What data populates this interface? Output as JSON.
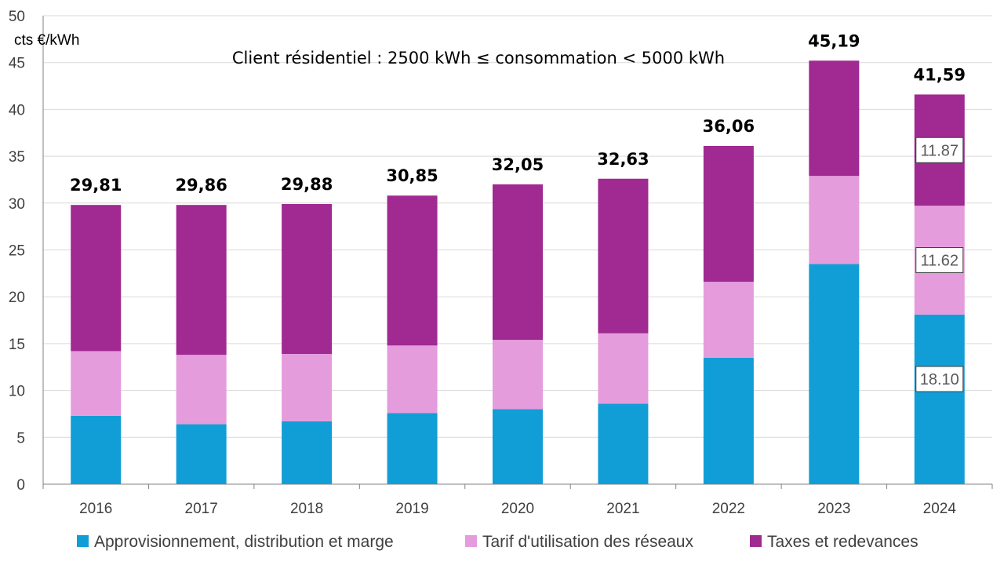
{
  "chart_data": {
    "type": "bar",
    "stacked": true,
    "title": "Client résidentiel : 2500 kWh ≤ consommation < 5000 kWh",
    "ylabel": "cts €/kWh",
    "xlabel": "",
    "ylim": [
      0,
      50
    ],
    "yticks": [
      "0",
      "5",
      "10",
      "15",
      "20",
      "25",
      "30",
      "35",
      "40",
      "45",
      "50"
    ],
    "grid": true,
    "legend_position": "bottom",
    "categories": [
      "2016",
      "2017",
      "2018",
      "2019",
      "2020",
      "2021",
      "2022",
      "2023",
      "2024"
    ],
    "series": [
      {
        "name": "Approvisionnement, distribution et marge",
        "color": "#119ed6",
        "values": [
          7.3,
          6.4,
          6.7,
          7.6,
          8.0,
          8.6,
          13.5,
          23.5,
          18.1
        ]
      },
      {
        "name": "Tarif d'utilisation des réseaux",
        "color": "#e49cdd",
        "values": [
          6.9,
          7.4,
          7.2,
          7.2,
          7.4,
          7.5,
          8.1,
          9.4,
          11.62
        ]
      },
      {
        "name": "Taxes et redevances",
        "color": "#a02a91",
        "values": [
          15.6,
          16.0,
          16.0,
          16.0,
          16.6,
          16.5,
          14.5,
          12.3,
          11.87
        ]
      }
    ],
    "totals": [
      "29,81",
      "29,86",
      "29,88",
      "30,85",
      "32,05",
      "32,63",
      "36,06",
      "45,19",
      "41,59"
    ],
    "boxed_labels": [
      {
        "category": "2024",
        "series": 0,
        "text": "18.10"
      },
      {
        "category": "2024",
        "series": 1,
        "text": "11.62"
      },
      {
        "category": "2024",
        "series": 2,
        "text": "11.87"
      }
    ]
  }
}
